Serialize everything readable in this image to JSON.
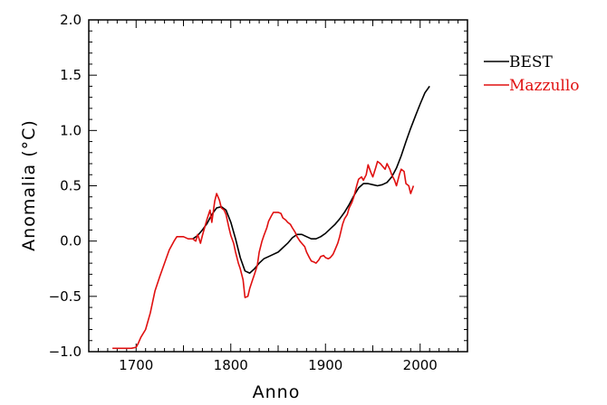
{
  "chart_data": {
    "type": "line",
    "xlabel": "Anno",
    "ylabel": "Anomalia  (°C)",
    "xlim": [
      1650,
      2050
    ],
    "ylim": [
      -1.0,
      2.0
    ],
    "x_ticks": [
      1700,
      1800,
      1900,
      2000
    ],
    "x_tick_labels": [
      "1700",
      "1800",
      "1900",
      "2000"
    ],
    "y_ticks": [
      -1.0,
      -0.5,
      0.0,
      0.5,
      1.0,
      1.5,
      2.0
    ],
    "y_tick_labels": [
      "−1.0",
      "−0.5",
      "0.0",
      "0.5",
      "1.0",
      "1.5",
      "2.0"
    ],
    "grid": false,
    "legend_position": "outside-right-top",
    "series": [
      {
        "name": "BEST",
        "color": "#000000",
        "x": [
          1760,
          1765,
          1770,
          1775,
          1780,
          1785,
          1790,
          1795,
          1800,
          1805,
          1810,
          1815,
          1820,
          1825,
          1830,
          1835,
          1840,
          1845,
          1850,
          1855,
          1860,
          1865,
          1870,
          1875,
          1880,
          1885,
          1890,
          1895,
          1900,
          1905,
          1910,
          1915,
          1920,
          1925,
          1930,
          1935,
          1940,
          1945,
          1950,
          1955,
          1960,
          1965,
          1970,
          1975,
          1980,
          1985,
          1990,
          1995,
          2000,
          2005,
          2010
        ],
        "y": [
          0.02,
          0.05,
          0.1,
          0.16,
          0.24,
          0.3,
          0.31,
          0.28,
          0.17,
          0.02,
          -0.15,
          -0.27,
          -0.29,
          -0.25,
          -0.2,
          -0.16,
          -0.14,
          -0.12,
          -0.1,
          -0.06,
          -0.02,
          0.03,
          0.06,
          0.06,
          0.04,
          0.02,
          0.02,
          0.04,
          0.07,
          0.11,
          0.15,
          0.2,
          0.26,
          0.33,
          0.41,
          0.48,
          0.52,
          0.52,
          0.51,
          0.5,
          0.51,
          0.53,
          0.58,
          0.66,
          0.77,
          0.9,
          1.02,
          1.13,
          1.24,
          1.34,
          1.4
        ]
      },
      {
        "name": "Mazzullo",
        "color": "#e01010",
        "x": [
          1675,
          1680,
          1685,
          1690,
          1695,
          1700,
          1702,
          1705,
          1710,
          1715,
          1720,
          1725,
          1730,
          1735,
          1740,
          1743,
          1745,
          1750,
          1755,
          1760,
          1763,
          1765,
          1768,
          1770,
          1773,
          1775,
          1778,
          1780,
          1783,
          1785,
          1788,
          1790,
          1793,
          1795,
          1798,
          1800,
          1803,
          1805,
          1808,
          1810,
          1813,
          1815,
          1818,
          1820,
          1823,
          1825,
          1828,
          1830,
          1833,
          1835,
          1838,
          1840,
          1843,
          1845,
          1848,
          1850,
          1853,
          1855,
          1858,
          1860,
          1863,
          1865,
          1868,
          1870,
          1873,
          1875,
          1878,
          1880,
          1883,
          1885,
          1888,
          1890,
          1893,
          1895,
          1898,
          1900,
          1903,
          1905,
          1908,
          1910,
          1913,
          1915,
          1918,
          1920,
          1923,
          1925,
          1928,
          1930,
          1933,
          1935,
          1938,
          1940,
          1943,
          1945,
          1948,
          1950,
          1953,
          1955,
          1958,
          1960,
          1963,
          1965,
          1968,
          1970,
          1973,
          1975,
          1978,
          1980,
          1983,
          1985,
          1988,
          1990,
          1993
        ],
        "y": [
          -0.97,
          -0.97,
          -0.97,
          -0.97,
          -0.97,
          -0.96,
          -0.93,
          -0.87,
          -0.8,
          -0.65,
          -0.45,
          -0.32,
          -0.2,
          -0.08,
          0.0,
          0.04,
          0.04,
          0.04,
          0.02,
          0.02,
          0.0,
          0.06,
          -0.02,
          0.05,
          0.14,
          0.2,
          0.28,
          0.17,
          0.36,
          0.43,
          0.37,
          0.3,
          0.28,
          0.24,
          0.12,
          0.05,
          -0.02,
          -0.1,
          -0.2,
          -0.25,
          -0.35,
          -0.51,
          -0.5,
          -0.43,
          -0.35,
          -0.3,
          -0.22,
          -0.1,
          0.0,
          0.05,
          0.12,
          0.18,
          0.23,
          0.26,
          0.26,
          0.26,
          0.25,
          0.21,
          0.19,
          0.17,
          0.15,
          0.12,
          0.08,
          0.04,
          0.0,
          -0.02,
          -0.05,
          -0.1,
          -0.15,
          -0.18,
          -0.19,
          -0.2,
          -0.17,
          -0.14,
          -0.13,
          -0.15,
          -0.16,
          -0.15,
          -0.12,
          -0.08,
          -0.02,
          0.04,
          0.15,
          0.2,
          0.24,
          0.3,
          0.35,
          0.4,
          0.5,
          0.56,
          0.58,
          0.55,
          0.6,
          0.69,
          0.62,
          0.58,
          0.66,
          0.72,
          0.7,
          0.68,
          0.65,
          0.7,
          0.65,
          0.6,
          0.55,
          0.5,
          0.6,
          0.65,
          0.63,
          0.52,
          0.5,
          0.43,
          0.5
        ]
      }
    ]
  }
}
